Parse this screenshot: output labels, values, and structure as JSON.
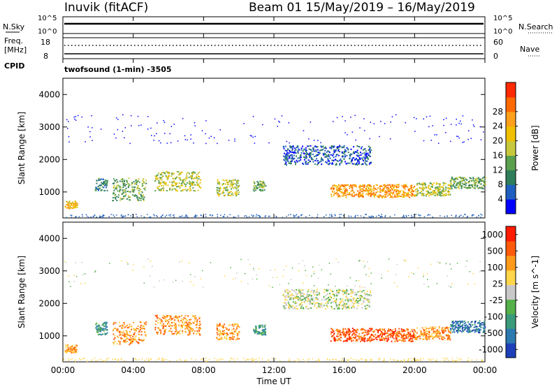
{
  "header": {
    "title_left": "Inuvik (fitACF)",
    "title_right": "Beam 01  15/May/2019 – 16/May/2019",
    "program": "twofsound (1-min) -3505"
  },
  "aux_panels": {
    "nsky": {
      "label": "N.Sky",
      "ticks": [
        "10^5",
        "10^0"
      ]
    },
    "nsearch": {
      "label": "N.Search",
      "ticks": [
        "10^5",
        "10^0"
      ]
    },
    "freq": {
      "label_1": "Freq.",
      "label_2": "[MHz]",
      "ticks": [
        "18",
        "8"
      ]
    },
    "nave": {
      "label": "Nave",
      "ticks": [
        "60",
        "0"
      ]
    },
    "cpid": {
      "label": "CPID"
    }
  },
  "chart_data": [
    {
      "type": "heatmap",
      "name": "power",
      "ylabel": "Slant Range [km]",
      "xlabel": "",
      "x_ticks": [
        "00:00",
        "04:00",
        "08:00",
        "12:00",
        "16:00",
        "20:00",
        "00:00"
      ],
      "y_ticks": [
        "1000",
        "2000",
        "3000",
        "4000"
      ],
      "ylim": [
        200,
        4500
      ],
      "xlim_hours": [
        0,
        24
      ],
      "colorbar": {
        "label": "Power [dB]",
        "ticks": [
          "4",
          "8",
          "12",
          "16",
          "20",
          "24",
          "28"
        ],
        "colors": [
          "#0000ff",
          "#1f5fbf",
          "#2e7d5b",
          "#5aa04f",
          "#c8c83c",
          "#f0c000",
          "#ff9f1a",
          "#ff6a00",
          "#ff2a00"
        ]
      },
      "scatter_bands": [
        {
          "start": 0.1,
          "end": 0.8,
          "center": 620,
          "spread": 120,
          "level": 5
        },
        {
          "start": 1.8,
          "end": 2.5,
          "center": 1250,
          "spread": 200,
          "level": 2
        },
        {
          "start": 2.8,
          "end": 4.7,
          "center": 1100,
          "spread": 350,
          "level": 3
        },
        {
          "start": 5.2,
          "end": 7.8,
          "center": 1350,
          "spread": 300,
          "level": 4
        },
        {
          "start": 8.7,
          "end": 10.0,
          "center": 1150,
          "spread": 250,
          "level": 4
        },
        {
          "start": 10.8,
          "end": 11.5,
          "center": 1200,
          "spread": 150,
          "level": 3
        },
        {
          "start": 15.2,
          "end": 20.0,
          "center": 1050,
          "spread": 200,
          "level": 6
        },
        {
          "start": 20.0,
          "end": 22.0,
          "center": 1100,
          "spread": 200,
          "level": 4
        },
        {
          "start": 22.0,
          "end": 24.0,
          "center": 1300,
          "spread": 180,
          "level": 3
        },
        {
          "start": 12.5,
          "end": 17.5,
          "center": 2150,
          "spread": 300,
          "level": 1
        }
      ]
    },
    {
      "type": "heatmap",
      "name": "velocity",
      "ylabel": "Slant Range [km]",
      "xlabel": "Time UT",
      "x_ticks": [
        "00:00",
        "04:00",
        "08:00",
        "12:00",
        "16:00",
        "20:00",
        "00:00"
      ],
      "y_ticks": [
        "1000",
        "2000",
        "3000",
        "4000"
      ],
      "ylim": [
        200,
        4500
      ],
      "xlim_hours": [
        0,
        24
      ],
      "colorbar": {
        "label": "Velocity [m s^-1]",
        "ticks": [
          "1000",
          "500",
          "100",
          "25",
          "-25",
          "-100",
          "-500",
          "-1000"
        ],
        "colors": [
          "#1d3fb8",
          "#2c7ab0",
          "#3a9a7a",
          "#55b04a",
          "#c8c8c8",
          "#ffd54a",
          "#ff9a1a",
          "#ff5a0a",
          "#ff1a00"
        ]
      },
      "scatter_bands": [
        {
          "start": 0.1,
          "end": 0.8,
          "center": 620,
          "spread": 120,
          "level": 6
        },
        {
          "start": 1.8,
          "end": 2.5,
          "center": 1250,
          "spread": 200,
          "level": 2
        },
        {
          "start": 2.8,
          "end": 4.7,
          "center": 1100,
          "spread": 350,
          "level": 6
        },
        {
          "start": 5.2,
          "end": 7.8,
          "center": 1350,
          "spread": 300,
          "level": 6
        },
        {
          "start": 8.7,
          "end": 10.0,
          "center": 1150,
          "spread": 250,
          "level": 6
        },
        {
          "start": 10.8,
          "end": 11.5,
          "center": 1200,
          "spread": 150,
          "level": 2
        },
        {
          "start": 15.2,
          "end": 20.0,
          "center": 1050,
          "spread": 200,
          "level": 7
        },
        {
          "start": 20.0,
          "end": 22.0,
          "center": 1100,
          "spread": 200,
          "level": 6
        },
        {
          "start": 22.0,
          "end": 24.0,
          "center": 1300,
          "spread": 180,
          "level": 1
        },
        {
          "start": 12.5,
          "end": 17.5,
          "center": 2150,
          "spread": 300,
          "level": 4
        }
      ]
    }
  ]
}
